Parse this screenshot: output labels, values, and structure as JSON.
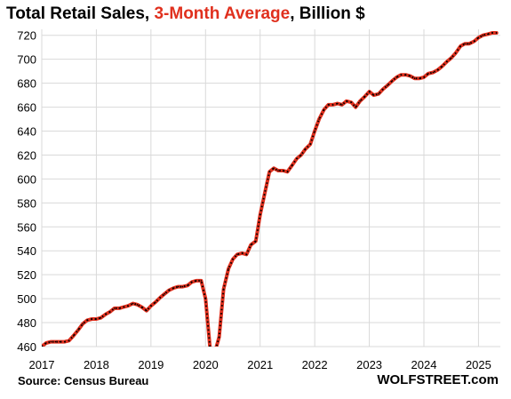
{
  "title": {
    "part1": "Total Retail Sales, ",
    "part2": "3-Month Average",
    "part3": ", Billion $",
    "highlight_color": "#e0301e"
  },
  "source": "Source: Census Bureau",
  "credit": "WOLFSTREET.com",
  "colors": {
    "line": "#e0301e",
    "dots": "#000000",
    "grid": "#d9d9d9"
  },
  "chart_data": {
    "type": "line",
    "title": "Total Retail Sales, 3-Month Average, Billion $",
    "xlabel": "",
    "ylabel": "",
    "xlim": [
      2017.0,
      2025.4
    ],
    "ylim": [
      460,
      725
    ],
    "x_ticks": [
      2017,
      2018,
      2019,
      2020,
      2021,
      2022,
      2023,
      2024,
      2025
    ],
    "y_ticks": [
      460,
      480,
      500,
      520,
      540,
      560,
      580,
      600,
      620,
      640,
      660,
      680,
      700,
      720
    ],
    "grid": true,
    "line_style": "red line with black dotted overlay",
    "series": [
      {
        "name": "",
        "x": [
          2017.0,
          2017.08,
          2017.17,
          2017.25,
          2017.33,
          2017.42,
          2017.5,
          2017.58,
          2017.67,
          2017.75,
          2017.83,
          2017.92,
          2018.0,
          2018.08,
          2018.17,
          2018.25,
          2018.33,
          2018.42,
          2018.5,
          2018.58,
          2018.67,
          2018.75,
          2018.83,
          2018.92,
          2019.0,
          2019.08,
          2019.17,
          2019.25,
          2019.33,
          2019.42,
          2019.5,
          2019.58,
          2019.67,
          2019.75,
          2019.83,
          2019.92,
          2020.0,
          2020.08,
          2020.17,
          2020.25,
          2020.33,
          2020.42,
          2020.5,
          2020.58,
          2020.67,
          2020.75,
          2020.83,
          2020.92,
          2021.0,
          2021.08,
          2021.17,
          2021.25,
          2021.33,
          2021.42,
          2021.5,
          2021.58,
          2021.67,
          2021.75,
          2021.83,
          2021.92,
          2022.0,
          2022.08,
          2022.17,
          2022.25,
          2022.33,
          2022.42,
          2022.5,
          2022.58,
          2022.67,
          2022.75,
          2022.83,
          2022.92,
          2023.0,
          2023.08,
          2023.17,
          2023.25,
          2023.33,
          2023.42,
          2023.5,
          2023.58,
          2023.67,
          2023.75,
          2023.83,
          2023.92,
          2024.0,
          2024.08,
          2024.17,
          2024.25,
          2024.33,
          2024.42,
          2024.5,
          2024.58,
          2024.67,
          2024.75,
          2024.83,
          2024.92,
          2025.0,
          2025.08,
          2025.17,
          2025.25,
          2025.33
        ],
        "y": [
          460,
          463,
          464,
          464,
          464,
          464,
          465,
          469,
          474,
          479,
          482,
          483,
          483,
          484,
          487,
          489,
          492,
          492,
          493,
          494,
          496,
          495,
          493,
          490,
          494,
          497,
          501,
          504,
          507,
          509,
          510,
          510,
          511,
          514,
          515,
          515,
          500,
          460,
          455,
          468,
          508,
          525,
          533,
          537,
          538,
          537,
          545,
          548,
          570,
          587,
          606,
          609,
          607,
          607,
          606,
          611,
          617,
          620,
          625,
          629,
          640,
          650,
          658,
          662,
          662,
          663,
          662,
          665,
          664,
          660,
          665,
          669,
          673,
          670,
          671,
          675,
          678,
          682,
          685,
          687,
          687,
          686,
          684,
          684,
          685,
          688,
          689,
          691,
          694,
          698,
          701,
          705,
          711,
          713,
          713,
          715,
          718,
          720,
          721,
          722,
          722
        ]
      }
    ]
  }
}
